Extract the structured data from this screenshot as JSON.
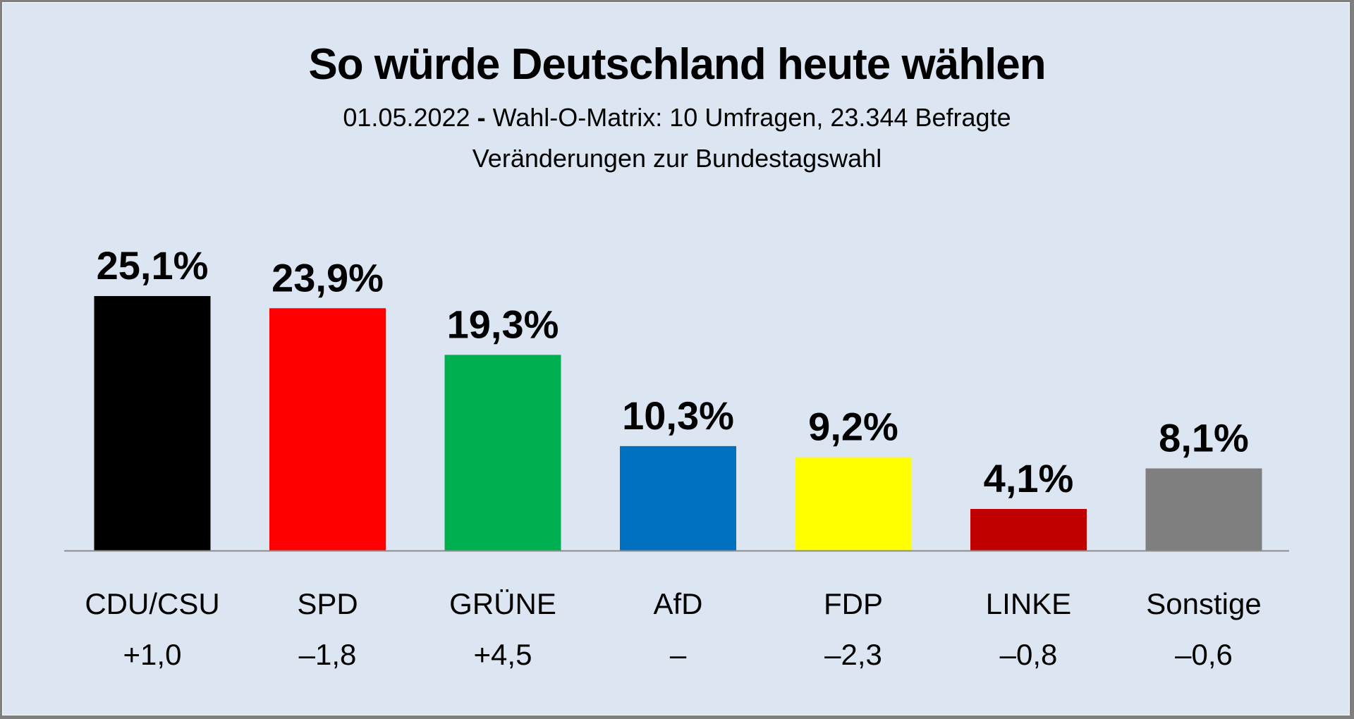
{
  "chart_data": {
    "type": "bar",
    "title": "So würde Deutschland heute wählen",
    "subtitle": {
      "date": "01.05.2022",
      "separator": "-",
      "source": "Wahl-O-Matrix: 10 Umfragen, 23.344 Befragte"
    },
    "subtitle2": "Veränderungen zur Bundestagswahl",
    "xlabel": "",
    "ylabel": "",
    "ylim": [
      0,
      25.1
    ],
    "grid": false,
    "legend": "none",
    "categories": [
      "CDU/CSU",
      "SPD",
      "GRÜNE",
      "AfD",
      "FDP",
      "LINKE",
      "Sonstige"
    ],
    "values": [
      25.1,
      23.9,
      19.3,
      10.3,
      9.2,
      4.1,
      8.1
    ],
    "value_labels": [
      "25,1%",
      "23,9%",
      "19,3%",
      "10,3%",
      "9,2%",
      "4,1%",
      "8,1%"
    ],
    "changes": [
      "+1,0",
      "–1,8",
      "+4,5",
      "–",
      "–2,3",
      "–0,8",
      "–0,6"
    ],
    "colors": [
      "#000000",
      "#ff0000",
      "#00b050",
      "#0070c0",
      "#ffff00",
      "#c00000",
      "#7f7f7f"
    ]
  },
  "theme": {
    "background": "#dce6f2",
    "border": "#7f7f7f",
    "baseline": "#8c8c8c"
  }
}
